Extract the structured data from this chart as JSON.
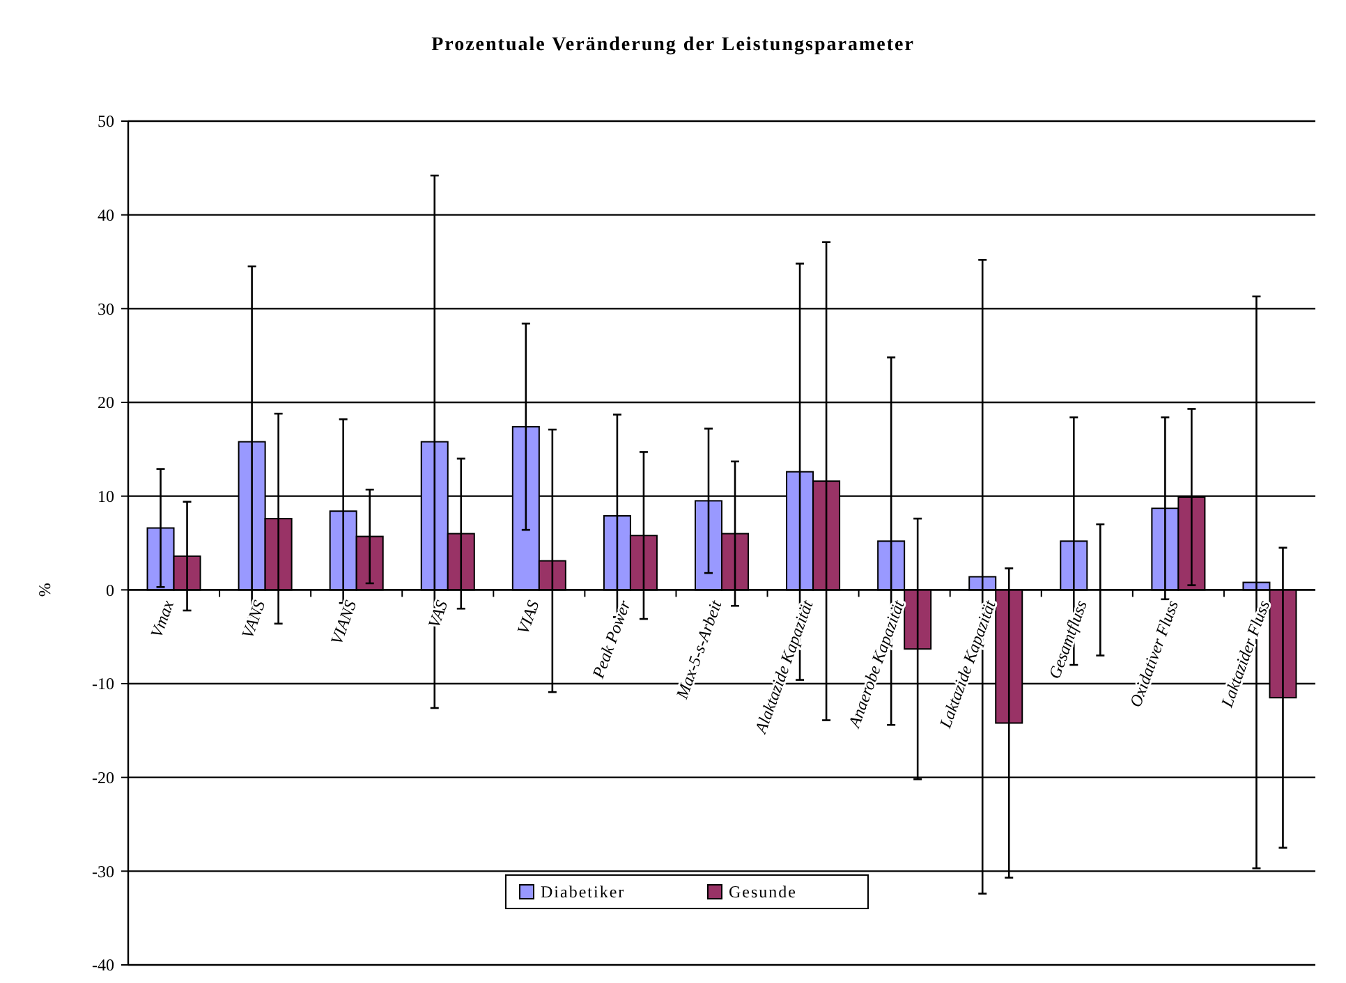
{
  "chart_data": {
    "type": "bar",
    "title": "Prozentuale Veränderung der Leistungsparameter",
    "ylabel": "%",
    "categories": [
      "Vmax",
      "VANS",
      "VIANS",
      "VAS",
      "VIAS",
      "Peak Power",
      "Max-5-s-Arbeit",
      "Alaktazide Kapazität",
      "Anaerobe Kapazität",
      "Laktazide Kapazität",
      "Gesamtfluss",
      "Oxidativer Fluss",
      "Laktazider Fluss"
    ],
    "series": [
      {
        "name": "Diabetiker",
        "color": "#9999ff",
        "values": [
          6.6,
          15.8,
          8.4,
          15.8,
          17.4,
          7.9,
          9.5,
          12.6,
          5.2,
          1.4,
          5.2,
          8.7,
          0.8
        ],
        "errors": [
          6.3,
          18.7,
          9.8,
          28.4,
          11,
          10.8,
          7.7,
          22.2,
          19.6,
          33.8,
          13.2,
          9.7,
          30.5
        ]
      },
      {
        "name": "Gesunde",
        "color": "#993366",
        "values": [
          3.6,
          7.6,
          5.7,
          6,
          3.1,
          5.8,
          6,
          11.6,
          -6.3,
          -14.2,
          0,
          9.9,
          -11.5
        ],
        "errors": [
          5.8,
          11.2,
          5,
          8,
          14,
          8.9,
          7.7,
          25.5,
          13.9,
          16.5,
          7,
          9.4,
          16
        ]
      }
    ],
    "ylim": [
      -40,
      50
    ],
    "yticks": [
      -40,
      -30,
      -20,
      -10,
      0,
      10,
      20,
      30,
      40,
      50
    ],
    "grid": "y",
    "legend": "bottom"
  }
}
